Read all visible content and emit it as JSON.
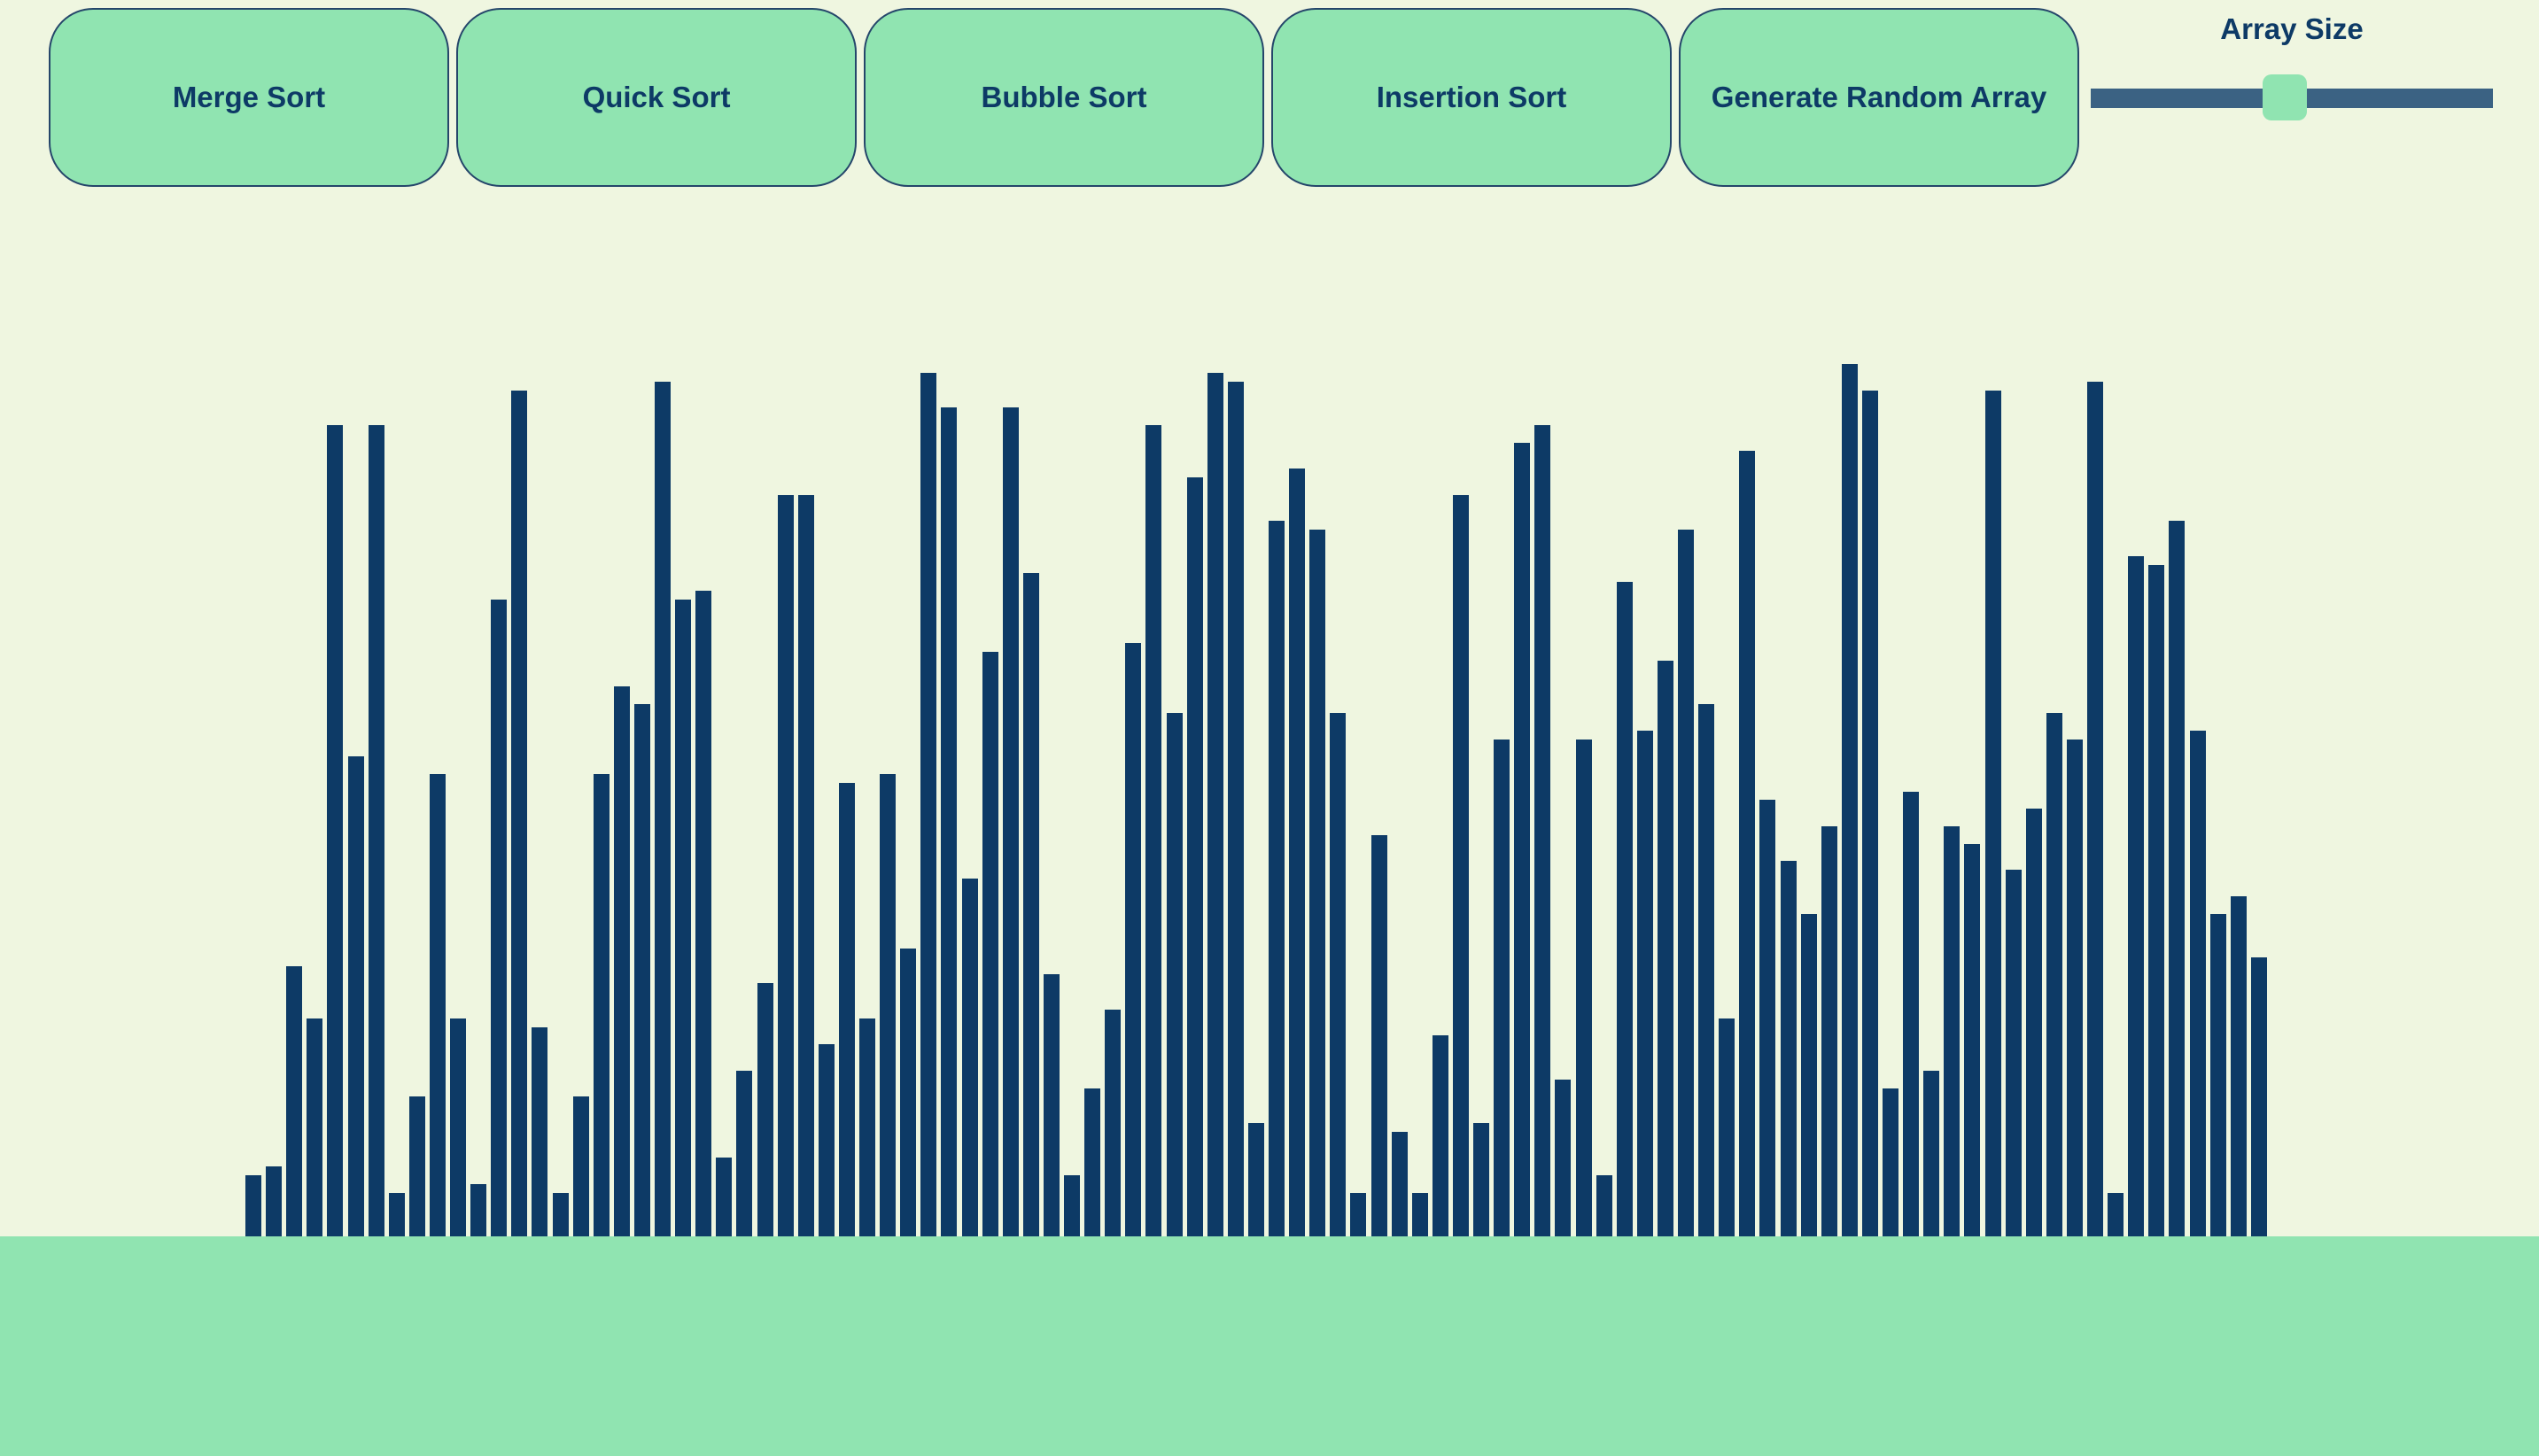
{
  "toolbar": {
    "buttons": [
      {
        "label": "Merge Sort"
      },
      {
        "label": "Quick Sort"
      },
      {
        "label": "Bubble Sort"
      },
      {
        "label": "Insertion Sort"
      },
      {
        "label": "Generate Random Array"
      }
    ],
    "array_size": {
      "label": "Array Size",
      "value_fraction": 0.48
    }
  },
  "colors": {
    "background": "#eff6e0",
    "accent": "#90e4b1",
    "bar": "#0d3a66",
    "track": "#3b6283"
  },
  "array": {
    "values": [
      7,
      8,
      31,
      25,
      93,
      55,
      93,
      5,
      16,
      53,
      25,
      6,
      73,
      97,
      24,
      5,
      16,
      53,
      63,
      61,
      98,
      73,
      74,
      9,
      19,
      29,
      85,
      85,
      22,
      52,
      25,
      53,
      33,
      99,
      95,
      41,
      67,
      95,
      76,
      30,
      7,
      17,
      26,
      68,
      93,
      60,
      87,
      99,
      98,
      13,
      82,
      88,
      81,
      60,
      5,
      46,
      12,
      5,
      23,
      85,
      13,
      57,
      91,
      93,
      18,
      57,
      7,
      75,
      58,
      66,
      81,
      61,
      25,
      90,
      50,
      43,
      37,
      47,
      100,
      97,
      17,
      51,
      19,
      47,
      45,
      97,
      42,
      49,
      60,
      57,
      98,
      5,
      78,
      77,
      82,
      58,
      37,
      39,
      32
    ]
  }
}
